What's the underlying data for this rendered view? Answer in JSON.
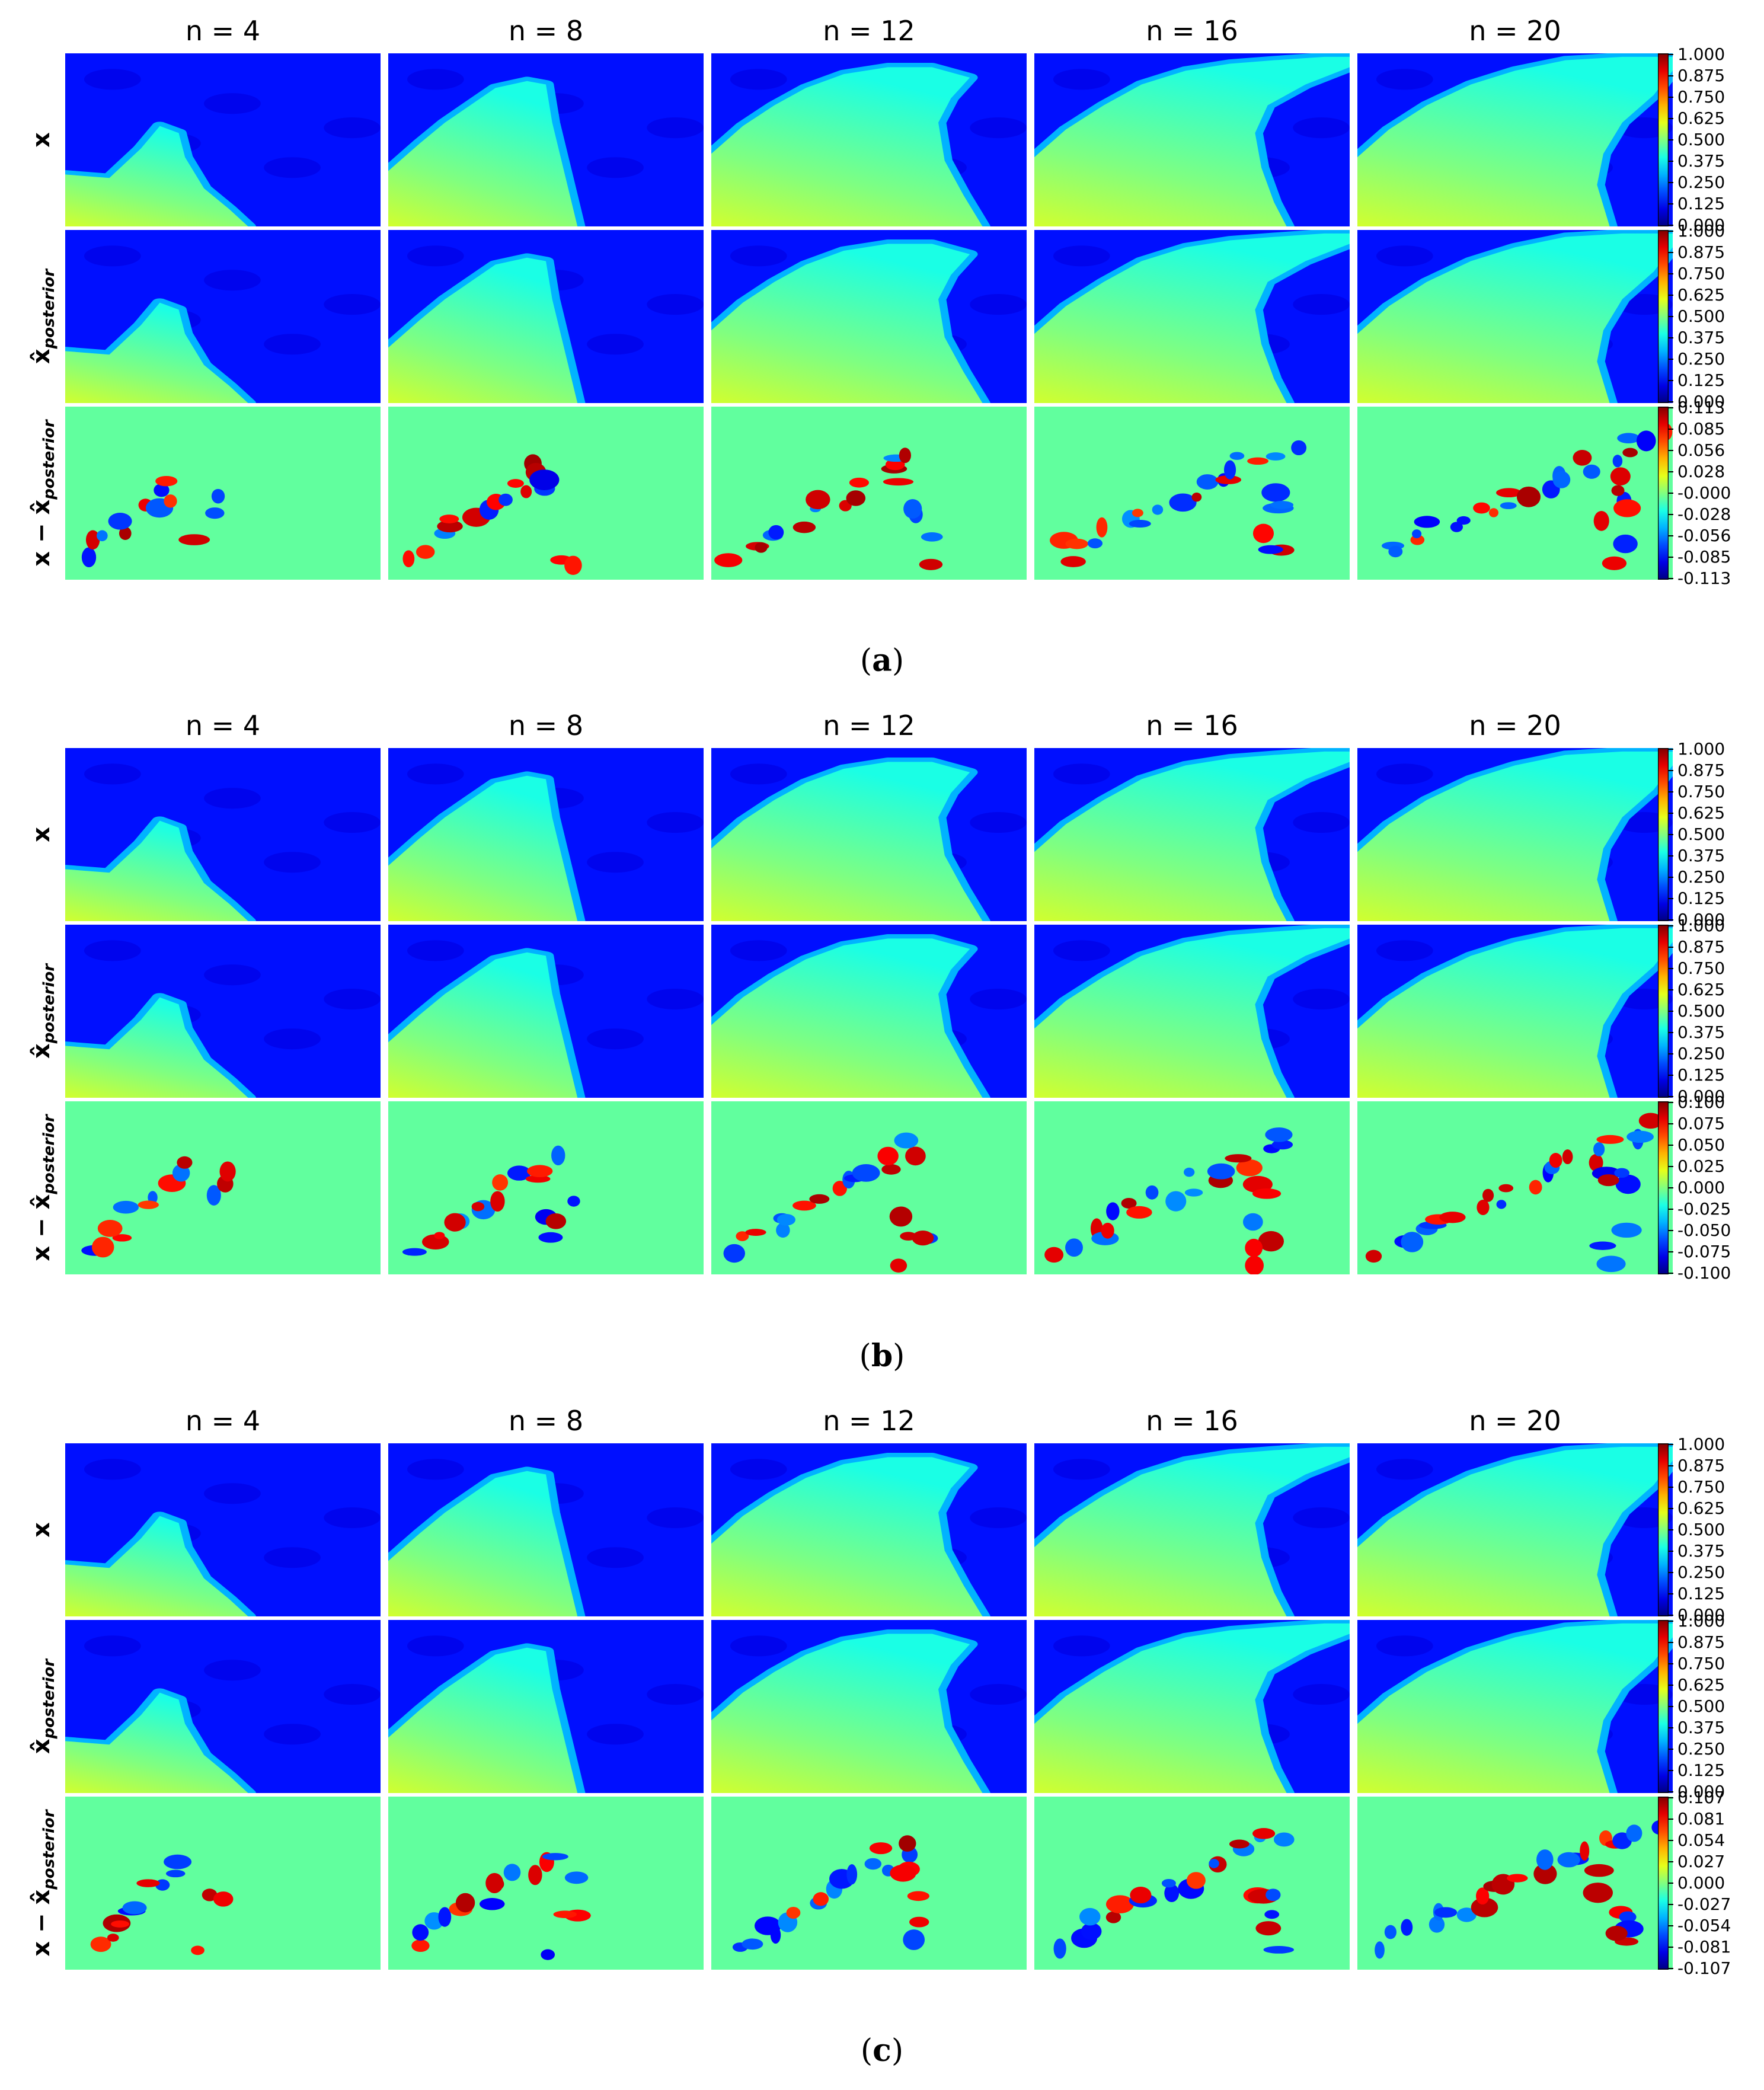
{
  "chart_data": [
    {
      "type": "heatmap",
      "panel": "(a)",
      "caption_letter": "a",
      "columns": [
        "n = 4",
        "n = 8",
        "n = 12",
        "n = 16",
        "n = 20"
      ],
      "colorscale": "jet",
      "rows": [
        {
          "label_main": "x",
          "label_sub": "",
          "hat": false,
          "diff": false,
          "colorbar": {
            "min": 0.0,
            "max": 1.0,
            "ticks": [
              "1.000",
              "0.875",
              "0.750",
              "0.625",
              "0.500",
              "0.375",
              "0.250",
              "0.125",
              "0.000"
            ]
          }
        },
        {
          "label_main": "x̂",
          "label_sub": "posterior",
          "hat": true,
          "diff": false,
          "colorbar": {
            "min": 0.0,
            "max": 1.0,
            "ticks": [
              "1.000",
              "0.875",
              "0.750",
              "0.625",
              "0.500",
              "0.375",
              "0.250",
              "0.125",
              "0.000"
            ]
          }
        },
        {
          "label_main": "x − x̂",
          "label_sub": "posterior",
          "hat": true,
          "diff": true,
          "colorbar": {
            "min": -0.113,
            "max": 0.113,
            "ticks": [
              "0.113",
              "0.085",
              "0.056",
              "0.028",
              "-0.000",
              "-0.028",
              "-0.056",
              "-0.085",
              "-0.113"
            ]
          }
        }
      ]
    },
    {
      "type": "heatmap",
      "panel": "(b)",
      "caption_letter": "b",
      "columns": [
        "n = 4",
        "n = 8",
        "n = 12",
        "n = 16",
        "n = 20"
      ],
      "colorscale": "jet",
      "rows": [
        {
          "label_main": "x",
          "label_sub": "",
          "hat": false,
          "diff": false,
          "colorbar": {
            "min": 0.0,
            "max": 1.0,
            "ticks": [
              "1.000",
              "0.875",
              "0.750",
              "0.625",
              "0.500",
              "0.375",
              "0.250",
              "0.125",
              "0.000"
            ]
          }
        },
        {
          "label_main": "x̂",
          "label_sub": "posterior",
          "hat": true,
          "diff": false,
          "colorbar": {
            "min": 0.0,
            "max": 1.0,
            "ticks": [
              "1.000",
              "0.875",
              "0.750",
              "0.625",
              "0.500",
              "0.375",
              "0.250",
              "0.125",
              "0.000"
            ]
          }
        },
        {
          "label_main": "x − x̂",
          "label_sub": "posterior",
          "hat": true,
          "diff": true,
          "colorbar": {
            "min": -0.1,
            "max": 0.1,
            "ticks": [
              "0.100",
              "0.075",
              "0.050",
              "0.025",
              "0.000",
              "-0.025",
              "-0.050",
              "-0.075",
              "-0.100"
            ]
          }
        }
      ]
    },
    {
      "type": "heatmap",
      "panel": "(c)",
      "caption_letter": "c",
      "columns": [
        "n = 4",
        "n = 8",
        "n = 12",
        "n = 16",
        "n = 20"
      ],
      "colorscale": "jet",
      "rows": [
        {
          "label_main": "x",
          "label_sub": "",
          "hat": false,
          "diff": false,
          "colorbar": {
            "min": 0.0,
            "max": 1.0,
            "ticks": [
              "1.000",
              "0.875",
              "0.750",
              "0.625",
              "0.500",
              "0.375",
              "0.250",
              "0.125",
              "0.000"
            ]
          }
        },
        {
          "label_main": "x̂",
          "label_sub": "posterior",
          "hat": true,
          "diff": false,
          "colorbar": {
            "min": 0.0,
            "max": 1.0,
            "ticks": [
              "1.000",
              "0.875",
              "0.750",
              "0.625",
              "0.500",
              "0.375",
              "0.250",
              "0.125",
              "0.000"
            ]
          }
        },
        {
          "label_main": "x − x̂",
          "label_sub": "posterior",
          "hat": true,
          "diff": true,
          "colorbar": {
            "min": -0.107,
            "max": 0.107,
            "ticks": [
              "0.107",
              "0.081",
              "0.054",
              "0.027",
              "0.000",
              "-0.027",
              "-0.054",
              "-0.081",
              "-0.107"
            ]
          }
        }
      ]
    }
  ]
}
